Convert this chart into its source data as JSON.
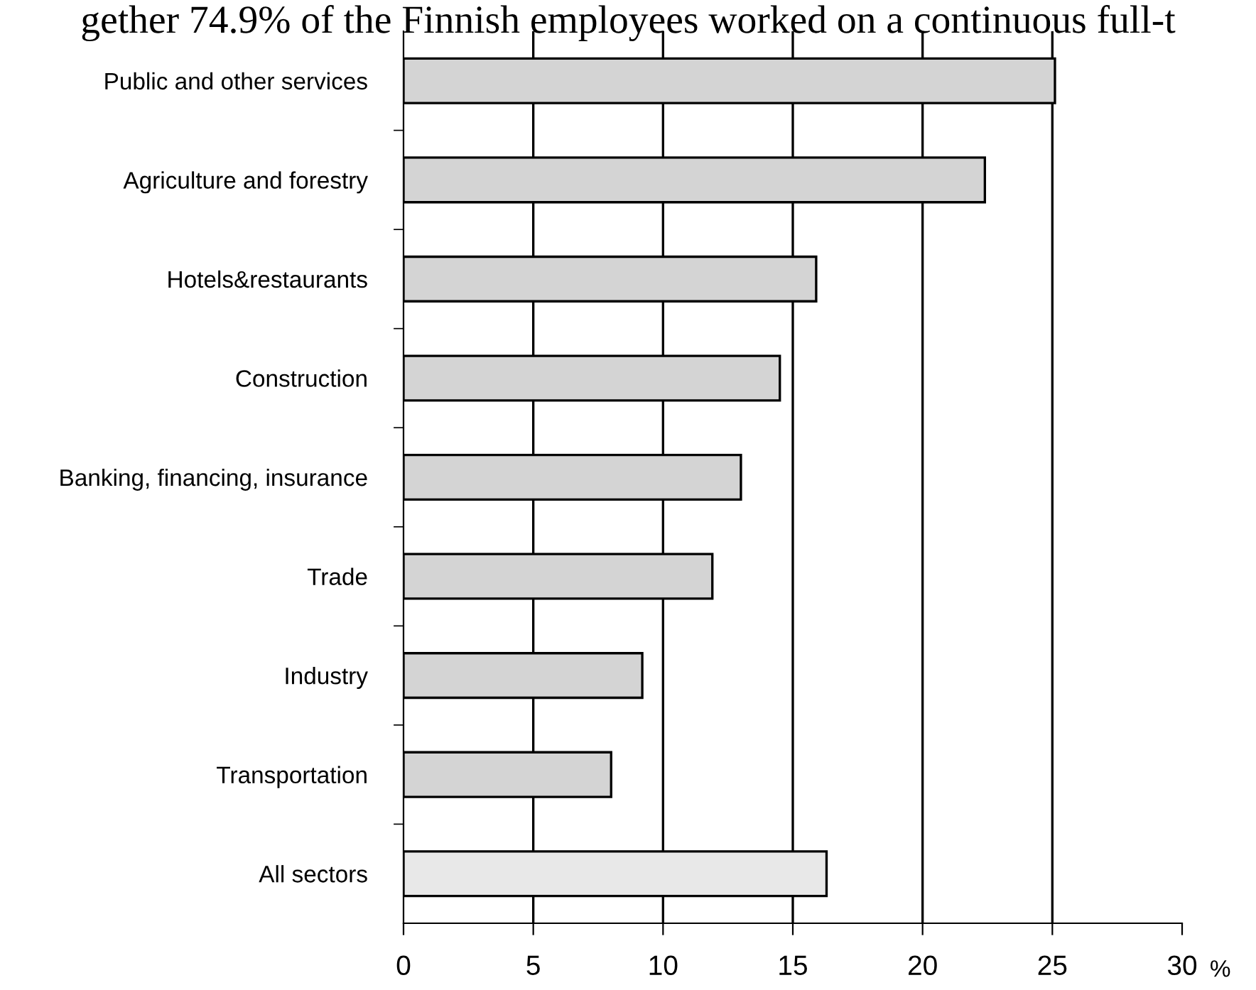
{
  "chart_data": {
    "type": "bar",
    "orientation": "horizontal",
    "categories": [
      "Public and other services",
      "Agriculture and forestry",
      "Hotels&restaurants",
      "Construction",
      "Banking, financing, insurance",
      "Trade",
      "Industry",
      "Transportation",
      "All sectors"
    ],
    "values": [
      25.1,
      22.4,
      15.9,
      14.5,
      13.0,
      11.9,
      9.2,
      8.0,
      16.3
    ],
    "colors": [
      "#d4d4d4",
      "#d4d4d4",
      "#d4d4d4",
      "#d4d4d4",
      "#d4d4d4",
      "#d4d4d4",
      "#d4d4d4",
      "#d4d4d4",
      "#e8e8e8"
    ],
    "xlabel": "%",
    "xlim": [
      0,
      30
    ],
    "xticks": [
      0,
      5,
      10,
      15,
      20,
      25,
      30
    ],
    "grid": "x",
    "annotations": [
      "gether 74.9% of the Finnish employees worked on a continuous full-t"
    ]
  }
}
